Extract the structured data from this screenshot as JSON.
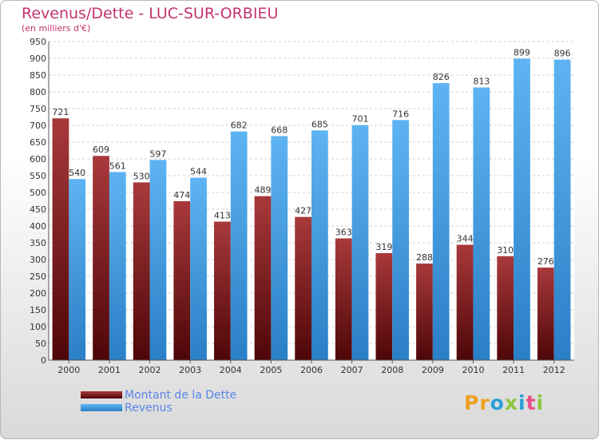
{
  "chart_data": {
    "type": "bar",
    "title": "Revenus/Dette - LUC-SUR-ORBIEU",
    "subtitle": "(en milliers d'€)",
    "categories": [
      "2000",
      "2001",
      "2002",
      "2003",
      "2004",
      "2005",
      "2006",
      "2007",
      "2008",
      "2009",
      "2010",
      "2011",
      "2012"
    ],
    "series": [
      {
        "name": "Montant de la Dette",
        "color": "#7a1416",
        "values": [
          721,
          609,
          530,
          474,
          413,
          489,
          427,
          363,
          319,
          288,
          344,
          310,
          276
        ]
      },
      {
        "name": "Revenus",
        "color": "#3f9ae0",
        "values": [
          540,
          561,
          597,
          544,
          682,
          668,
          685,
          701,
          716,
          826,
          813,
          899,
          896
        ]
      }
    ],
    "ylim": [
      0,
      950
    ],
    "ytick_step": 50,
    "grid": true,
    "legend_position": "bottom-left"
  },
  "logo": {
    "letters": [
      "P",
      "r",
      "o",
      "x",
      "i",
      "t",
      "i"
    ],
    "colors": [
      "#f0a020",
      "#f0a020",
      "#2aa0d8",
      "#8cc63e",
      "#2aa0d8",
      "#e94e8a",
      "#8cc63e"
    ]
  }
}
